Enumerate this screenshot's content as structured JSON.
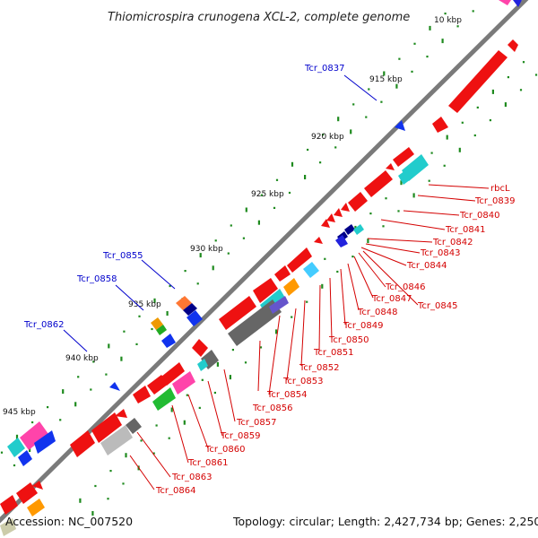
{
  "title": "Thiomicrospira crunogena XCL-2, complete genome",
  "footer": {
    "accession": "Accession: NC_007520",
    "topology": "Topology: circular; Length: 2,427,734 bp; Genes: 2,250"
  },
  "ticks": [
    "10 kbp",
    "915 kbp",
    "920 kbp",
    "925 kbp",
    "930 kbp",
    "935 kbp",
    "940 kbp",
    "945 kbp"
  ],
  "labels_blue": [
    "Tcr_0837",
    "Tcr_0855",
    "Tcr_0858",
    "Tcr_0862"
  ],
  "labels_red": [
    "rbcL",
    "Tcr_0839",
    "Tcr_0840",
    "Tcr_0841",
    "Tcr_0842",
    "Tcr_0843",
    "Tcr_0844",
    "Tcr_0846",
    "Tcr_0847",
    "Tcr_0845",
    "Tcr_0848",
    "Tcr_0849",
    "Tcr_0850",
    "Tcr_0851",
    "Tcr_0852",
    "Tcr_0853",
    "Tcr_0854",
    "Tcr_0856",
    "Tcr_0857",
    "Tcr_0859",
    "Tcr_0860",
    "Tcr_0861",
    "Tcr_0863",
    "Tcr_0864"
  ]
}
